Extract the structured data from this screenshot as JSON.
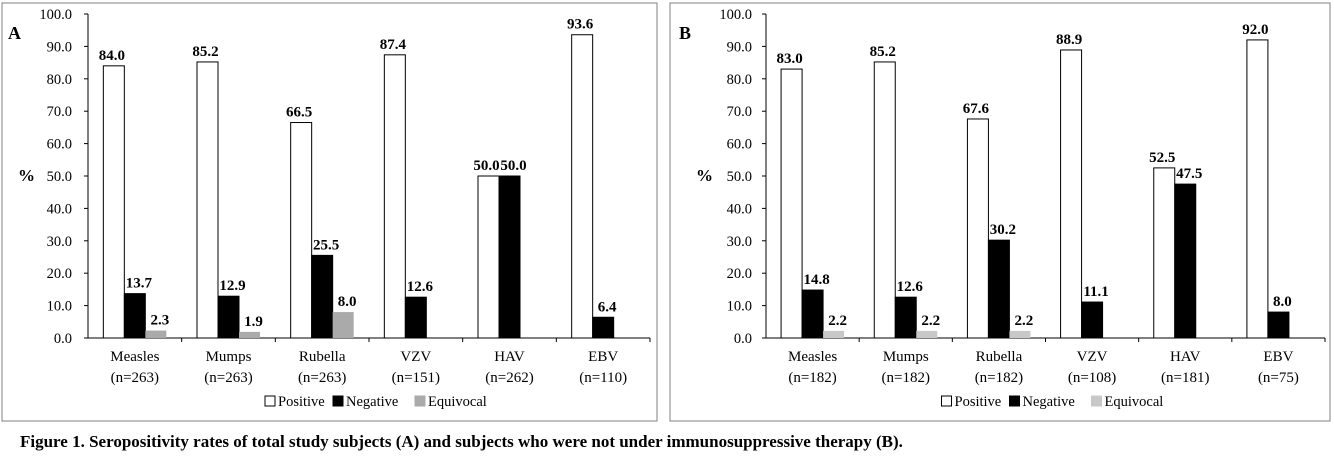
{
  "chart_data": [
    {
      "type": "bar",
      "panel_label": "A",
      "ylabel": "%",
      "ylim": [
        0,
        100
      ],
      "y_ticks": [
        "0.0",
        "10.0",
        "20.0",
        "30.0",
        "40.0",
        "50.0",
        "60.0",
        "70.0",
        "80.0",
        "90.0",
        "100.0"
      ],
      "categories": [
        "Measles",
        "Mumps",
        "Rubella",
        "VZV",
        "HAV",
        "EBV"
      ],
      "category_n": [
        "(n=263)",
        "(n=263)",
        "(n=263)",
        "(n=151)",
        "(n=262)",
        "(n=110)"
      ],
      "series": [
        {
          "name": "Positive",
          "color": "#ffffff",
          "values": [
            84.0,
            85.2,
            66.5,
            87.4,
            50.0,
            93.6
          ],
          "labels": [
            "84.0",
            "85.2",
            "66.5",
            "87.4",
            "50.0",
            "93.6"
          ]
        },
        {
          "name": "Negative",
          "color": "#000000",
          "values": [
            13.7,
            12.9,
            25.5,
            12.6,
            50.0,
            6.4
          ],
          "labels": [
            "13.7",
            "12.9",
            "25.5",
            "12.6",
            "50.0",
            "6.4"
          ]
        },
        {
          "name": "Equivocal",
          "color": "#aaaaaa",
          "values": [
            2.3,
            1.9,
            8.0,
            null,
            null,
            null
          ],
          "labels": [
            "2.3",
            "1.9",
            "8.0",
            null,
            null,
            null
          ]
        }
      ],
      "legend_position": "bottom"
    },
    {
      "type": "bar",
      "panel_label": "B",
      "ylabel": "%",
      "ylim": [
        0,
        100
      ],
      "y_ticks": [
        "0.0",
        "10.0",
        "20.0",
        "30.0",
        "40.0",
        "50.0",
        "60.0",
        "70.0",
        "80.0",
        "90.0",
        "100.0"
      ],
      "categories": [
        "Measles",
        "Mumps",
        "Rubella",
        "VZV",
        "HAV",
        "EBV"
      ],
      "category_n": [
        "(n=182)",
        "(n=182)",
        "(n=182)",
        "(n=108)",
        "(n=181)",
        "(n=75)"
      ],
      "series": [
        {
          "name": "Positive",
          "color": "#ffffff",
          "values": [
            83.0,
            85.2,
            67.6,
            88.9,
            52.5,
            92.0
          ],
          "labels": [
            "83.0",
            "85.2",
            "67.6",
            "88.9",
            "52.5",
            "92.0"
          ]
        },
        {
          "name": "Negative",
          "color": "#000000",
          "values": [
            14.8,
            12.6,
            30.2,
            11.1,
            47.5,
            8.0
          ],
          "labels": [
            "14.8",
            "12.6",
            "30.2",
            "11.1",
            "47.5",
            "8.0"
          ]
        },
        {
          "name": "Equivocal",
          "color": "#c8c8c8",
          "values": [
            2.2,
            2.2,
            2.2,
            null,
            null,
            null
          ],
          "labels": [
            "2.2",
            "2.2",
            "2.2",
            null,
            null,
            null
          ]
        }
      ],
      "legend_position": "bottom"
    }
  ],
  "caption": "Figure 1. Seropositivity rates of total study subjects (A) and subjects who were not under immunosuppressive therapy (B)."
}
